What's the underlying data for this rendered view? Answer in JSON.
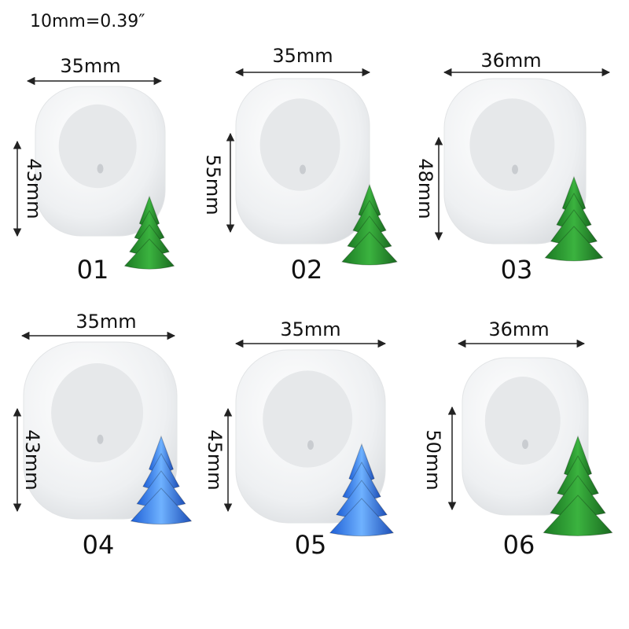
{
  "note": "10mm=0.39″",
  "items": [
    {
      "width": "35mm",
      "height": "43mm",
      "number": "01"
    },
    {
      "width": "35mm",
      "height": "55mm",
      "number": "02"
    },
    {
      "width": "36mm",
      "height": "48mm",
      "number": "03"
    },
    {
      "width": "35mm",
      "height": "43mm",
      "number": "04"
    },
    {
      "width": "35mm",
      "height": "45mm",
      "number": "05"
    },
    {
      "width": "36mm",
      "height": "50mm",
      "number": "06"
    }
  ]
}
